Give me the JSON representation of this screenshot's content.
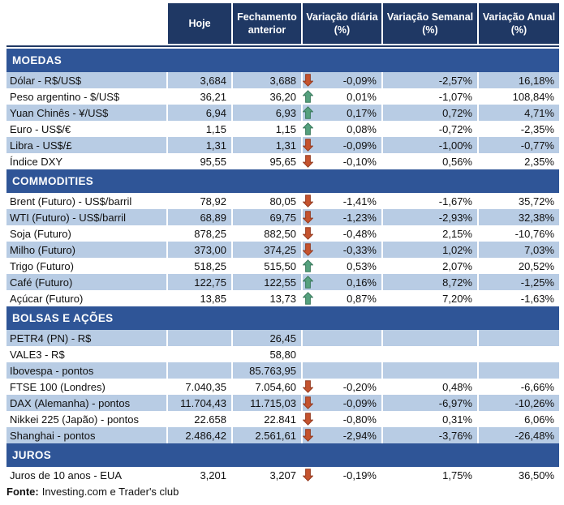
{
  "header": {
    "columns": [
      "Hoje",
      "Fechamento anterior",
      "Variação diária (%)",
      "Variação Semanal (%)",
      "Variação Anual (%)"
    ]
  },
  "sections": [
    {
      "title": "MOEDAS",
      "first_row_shaded": true,
      "rows": [
        {
          "label": "Dólar - R$/US$",
          "today": "3,684",
          "previous_close": "3,688",
          "trend": "down",
          "daily_change": "-0,09%",
          "weekly_change": "-2,57%",
          "annual_change": "16,18%"
        },
        {
          "label": "Peso argentino - $/US$",
          "today": "36,21",
          "previous_close": "36,20",
          "trend": "up",
          "daily_change": "0,01%",
          "weekly_change": "-1,07%",
          "annual_change": "108,84%"
        },
        {
          "label": "Yuan Chinês - ¥/US$",
          "today": "6,94",
          "previous_close": "6,93",
          "trend": "up",
          "daily_change": "0,17%",
          "weekly_change": "0,72%",
          "annual_change": "4,71%"
        },
        {
          "label": "Euro - US$/€",
          "today": "1,15",
          "previous_close": "1,15",
          "trend": "up",
          "daily_change": "0,08%",
          "weekly_change": "-0,72%",
          "annual_change": "-2,35%"
        },
        {
          "label": "Libra - US$/£",
          "today": "1,31",
          "previous_close": "1,31",
          "trend": "down",
          "daily_change": "-0,09%",
          "weekly_change": "-1,00%",
          "annual_change": "-0,77%"
        },
        {
          "label": "Índice DXY",
          "today": "95,55",
          "previous_close": "95,65",
          "trend": "down",
          "daily_change": "-0,10%",
          "weekly_change": "0,56%",
          "annual_change": "2,35%"
        }
      ]
    },
    {
      "title": "COMMODITIES",
      "first_row_shaded": false,
      "rows": [
        {
          "label": "Brent (Futuro) - US$/barril",
          "today": "78,92",
          "previous_close": "80,05",
          "trend": "down",
          "daily_change": "-1,41%",
          "weekly_change": "-1,67%",
          "annual_change": "35,72%"
        },
        {
          "label": "WTI (Futuro) - US$/barril",
          "today": "68,89",
          "previous_close": "69,75",
          "trend": "down",
          "daily_change": "-1,23%",
          "weekly_change": "-2,93%",
          "annual_change": "32,38%"
        },
        {
          "label": "Soja (Futuro)",
          "today": "878,25",
          "previous_close": "882,50",
          "trend": "down",
          "daily_change": "-0,48%",
          "weekly_change": "2,15%",
          "annual_change": "-10,76%"
        },
        {
          "label": "Milho (Futuro)",
          "today": "373,00",
          "previous_close": "374,25",
          "trend": "down",
          "daily_change": "-0,33%",
          "weekly_change": "1,02%",
          "annual_change": "7,03%"
        },
        {
          "label": "Trigo (Futuro)",
          "today": "518,25",
          "previous_close": "515,50",
          "trend": "up",
          "daily_change": "0,53%",
          "weekly_change": "2,07%",
          "annual_change": "20,52%"
        },
        {
          "label": "Café (Futuro)",
          "today": "122,75",
          "previous_close": "122,55",
          "trend": "up",
          "daily_change": "0,16%",
          "weekly_change": "8,72%",
          "annual_change": "-1,25%"
        },
        {
          "label": "Açúcar (Futuro)",
          "today": "13,85",
          "previous_close": "13,73",
          "trend": "up",
          "daily_change": "0,87%",
          "weekly_change": "7,20%",
          "annual_change": "-1,63%"
        }
      ]
    },
    {
      "title": "BOLSAS E AÇÕES",
      "first_row_shaded": true,
      "rows": [
        {
          "label": "PETR4 (PN) - R$",
          "today": "",
          "previous_close": "26,45",
          "trend": "",
          "daily_change": "",
          "weekly_change": "",
          "annual_change": ""
        },
        {
          "label": "VALE3 - R$",
          "today": "",
          "previous_close": "58,80",
          "trend": "",
          "daily_change": "",
          "weekly_change": "",
          "annual_change": ""
        },
        {
          "label": "Ibovespa - pontos",
          "today": "",
          "previous_close": "85.763,95",
          "trend": "",
          "daily_change": "",
          "weekly_change": "",
          "annual_change": ""
        },
        {
          "label": "FTSE 100 (Londres)",
          "today": "7.040,35",
          "previous_close": "7.054,60",
          "trend": "down",
          "daily_change": "-0,20%",
          "weekly_change": "0,48%",
          "annual_change": "-6,66%"
        },
        {
          "label": "DAX (Alemanha) - pontos",
          "today": "11.704,43",
          "previous_close": "11.715,03",
          "trend": "down",
          "daily_change": "-0,09%",
          "weekly_change": "-6,97%",
          "annual_change": "-10,26%"
        },
        {
          "label": "Nikkei 225 (Japão) - pontos",
          "today": "22.658",
          "previous_close": "22.841",
          "trend": "down",
          "daily_change": "-0,80%",
          "weekly_change": "0,31%",
          "annual_change": "6,06%"
        },
        {
          "label": "Shanghai - pontos",
          "today": "2.486,42",
          "previous_close": "2.561,61",
          "trend": "down",
          "daily_change": "-2,94%",
          "weekly_change": "-3,76%",
          "annual_change": "-26,48%"
        }
      ]
    },
    {
      "title": "JUROS",
      "first_row_shaded": false,
      "rows": [
        {
          "label": "Juros de 10 anos - EUA",
          "today": "3,201",
          "previous_close": "3,207",
          "trend": "down",
          "daily_change": "-0,19%",
          "weekly_change": "1,75%",
          "annual_change": "36,50%"
        }
      ]
    }
  ],
  "footer": {
    "source_label": "Fonte:",
    "source_text": "Investing.com e Trader's club"
  },
  "icons": {
    "up": "up-arrow-icon",
    "down": "down-arrow-icon"
  },
  "colors": {
    "header_bg": "#1F3864",
    "section_bg": "#2F5597",
    "row_shaded_bg": "#B8CCE4",
    "up_arrow": "#55A17E",
    "up_arrow_outline": "#3A7A5C",
    "down_arrow": "#C5532E",
    "down_arrow_outline": "#953B20"
  },
  "chart_data": {
    "type": "table",
    "columns": [
      "",
      "Hoje",
      "Fechamento anterior",
      "Variação diária (%)",
      "Variação Semanal (%)",
      "Variação Anual (%)"
    ],
    "groups": [
      {
        "group": "MOEDAS",
        "rows": [
          [
            "Dólar - R$/US$",
            "3,684",
            "3,688",
            "-0,09%",
            "-2,57%",
            "16,18%"
          ],
          [
            "Peso argentino - $/US$",
            "36,21",
            "36,20",
            "0,01%",
            "-1,07%",
            "108,84%"
          ],
          [
            "Yuan Chinês - ¥/US$",
            "6,94",
            "6,93",
            "0,17%",
            "0,72%",
            "4,71%"
          ],
          [
            "Euro - US$/€",
            "1,15",
            "1,15",
            "0,08%",
            "-0,72%",
            "-2,35%"
          ],
          [
            "Libra - US$/£",
            "1,31",
            "1,31",
            "-0,09%",
            "-1,00%",
            "-0,77%"
          ],
          [
            "Índice DXY",
            "95,55",
            "95,65",
            "-0,10%",
            "0,56%",
            "2,35%"
          ]
        ]
      },
      {
        "group": "COMMODITIES",
        "rows": [
          [
            "Brent (Futuro) - US$/barril",
            "78,92",
            "80,05",
            "-1,41%",
            "-1,67%",
            "35,72%"
          ],
          [
            "WTI (Futuro) - US$/barril",
            "68,89",
            "69,75",
            "-1,23%",
            "-2,93%",
            "32,38%"
          ],
          [
            "Soja (Futuro)",
            "878,25",
            "882,50",
            "-0,48%",
            "2,15%",
            "-10,76%"
          ],
          [
            "Milho (Futuro)",
            "373,00",
            "374,25",
            "-0,33%",
            "1,02%",
            "7,03%"
          ],
          [
            "Trigo (Futuro)",
            "518,25",
            "515,50",
            "0,53%",
            "2,07%",
            "20,52%"
          ],
          [
            "Café (Futuro)",
            "122,75",
            "122,55",
            "0,16%",
            "8,72%",
            "-1,25%"
          ],
          [
            "Açúcar (Futuro)",
            "13,85",
            "13,73",
            "0,87%",
            "7,20%",
            "-1,63%"
          ]
        ]
      },
      {
        "group": "BOLSAS E AÇÕES",
        "rows": [
          [
            "PETR4 (PN) - R$",
            "",
            "26,45",
            "",
            "",
            ""
          ],
          [
            "VALE3 - R$",
            "",
            "58,80",
            "",
            "",
            ""
          ],
          [
            "Ibovespa - pontos",
            "",
            "85.763,95",
            "",
            "",
            ""
          ],
          [
            "FTSE 100 (Londres)",
            "7.040,35",
            "7.054,60",
            "-0,20%",
            "0,48%",
            "-6,66%"
          ],
          [
            "DAX (Alemanha) - pontos",
            "11.704,43",
            "11.715,03",
            "-0,09%",
            "-6,97%",
            "-10,26%"
          ],
          [
            "Nikkei 225 (Japão) - pontos",
            "22.658",
            "22.841",
            "-0,80%",
            "0,31%",
            "6,06%"
          ],
          [
            "Shanghai - pontos",
            "2.486,42",
            "2.561,61",
            "-2,94%",
            "-3,76%",
            "-26,48%"
          ]
        ]
      },
      {
        "group": "JUROS",
        "rows": [
          [
            "Juros de 10 anos - EUA",
            "3,201",
            "3,207",
            "-0,19%",
            "1,75%",
            "36,50%"
          ]
        ]
      }
    ]
  }
}
